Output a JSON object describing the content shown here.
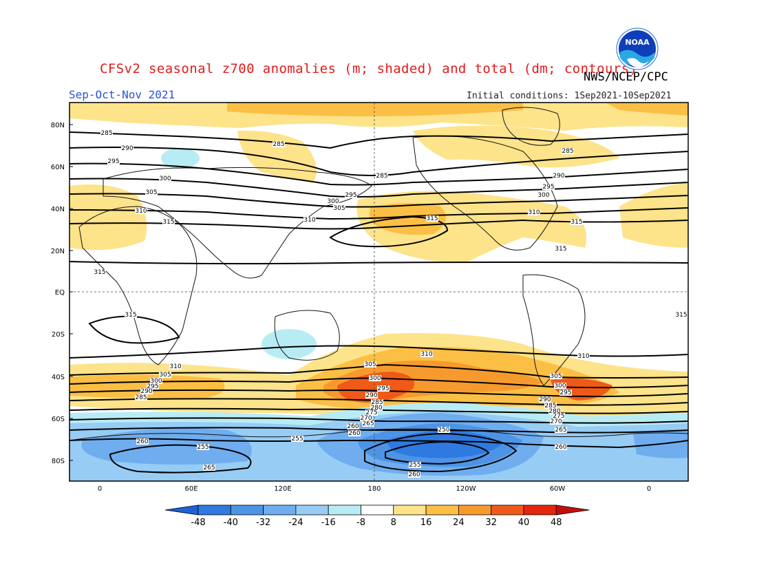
{
  "header": {
    "title": "CFSv2 seasonal z700 anomalies (m; shaded) and total (dm; contours)",
    "agency": "NWS/NCEP/CPC",
    "season": "Sep-Oct-Nov 2021",
    "initial_conditions": "Initial conditions: 1Sep2021-10Sep2021",
    "logo_text": "NOAA"
  },
  "map": {
    "lat_labels": [
      "80N",
      "60N",
      "40N",
      "20N",
      "EQ",
      "20S",
      "40S",
      "60S",
      "80S"
    ],
    "lon_labels": [
      "0",
      "60E",
      "120E",
      "180",
      "120W",
      "60W",
      "0"
    ],
    "contour_labels": {
      "nh": [
        "285",
        "285",
        "285",
        "290",
        "295",
        "300",
        "305",
        "310",
        "315",
        "285",
        "290",
        "295",
        "300",
        "310",
        "315",
        "295",
        "300",
        "305",
        "310",
        "315",
        "315",
        "315",
        "315",
        "315"
      ],
      "sh": [
        "310",
        "305",
        "300",
        "295",
        "290",
        "285",
        "310",
        "310",
        "305",
        "300",
        "295",
        "290",
        "285",
        "280",
        "275",
        "270",
        "265",
        "260",
        "305",
        "300",
        "295",
        "290",
        "285",
        "280",
        "275",
        "270",
        "265",
        "260",
        "255",
        "250",
        "255",
        "260",
        "260",
        "255",
        "265",
        "260"
      ]
    }
  },
  "colorbar": {
    "ticks": [
      "-48",
      "-40",
      "-32",
      "-24",
      "-16",
      "-8",
      "8",
      "16",
      "24",
      "32",
      "40",
      "48"
    ],
    "colors": [
      "#1c62d6",
      "#2f7ae0",
      "#4d94e6",
      "#6fadef",
      "#97ccf5",
      "#b8ecf5",
      "#ffffff",
      "#fde38a",
      "#fbbf45",
      "#f79a2e",
      "#f05a18",
      "#e4260f",
      "#c20f0b"
    ]
  }
}
